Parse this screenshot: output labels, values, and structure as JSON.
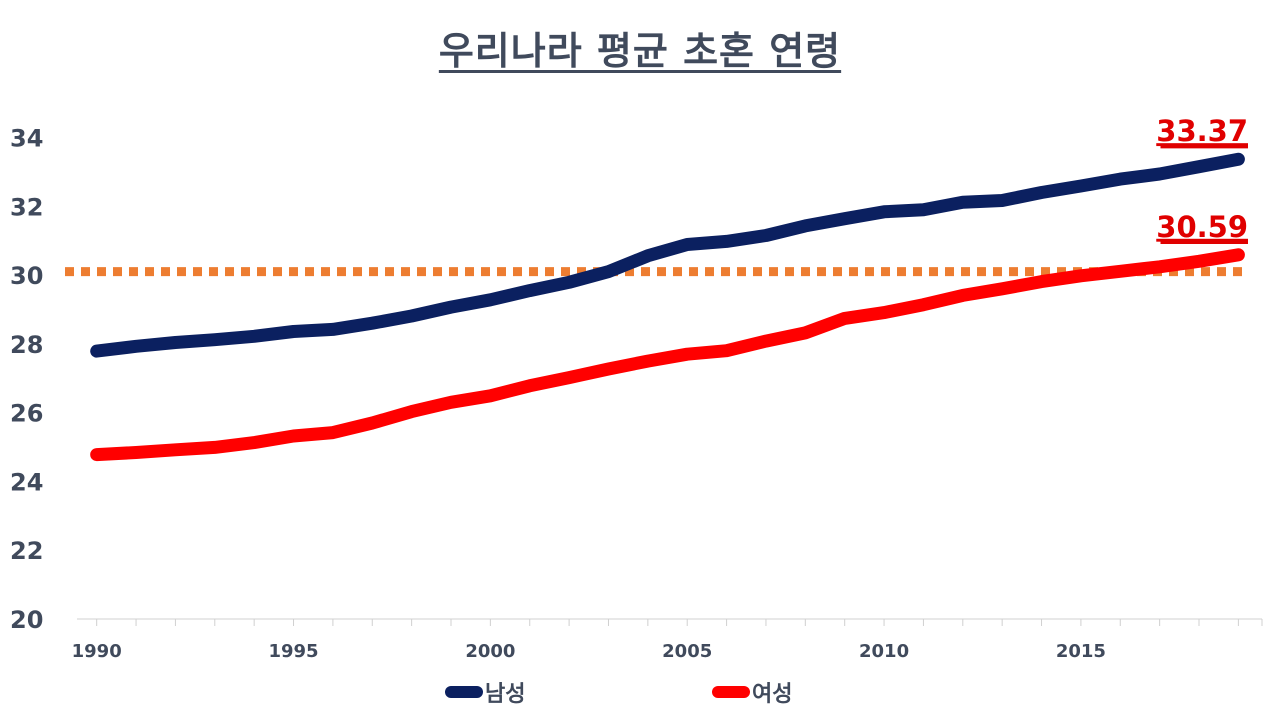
{
  "chart_data": {
    "type": "line",
    "title": "우리나라 평균 초혼 연령",
    "x": [
      1990,
      1991,
      1992,
      1993,
      1994,
      1995,
      1996,
      1997,
      1998,
      1999,
      2000,
      2001,
      2002,
      2003,
      2004,
      2005,
      2006,
      2007,
      2008,
      2009,
      2010,
      2011,
      2012,
      2013,
      2014,
      2015,
      2016,
      2017,
      2018,
      2019
    ],
    "x_tick_labels": [
      "1990",
      "1995",
      "2000",
      "2005",
      "2010",
      "2015"
    ],
    "x_tick_values": [
      1990,
      1995,
      2000,
      2005,
      2010,
      2015
    ],
    "y_tick_labels": [
      "20",
      "22",
      "24",
      "26",
      "28",
      "30",
      "32",
      "34"
    ],
    "y_tick_values": [
      20,
      22,
      24,
      26,
      28,
      30,
      32,
      34
    ],
    "ylim": [
      20,
      34.8
    ],
    "xlim": [
      1989.5,
      2019.6
    ],
    "series": [
      {
        "name": "남성",
        "color": "#0b2060",
        "values": [
          27.79,
          27.93,
          28.04,
          28.12,
          28.22,
          28.36,
          28.42,
          28.6,
          28.81,
          29.07,
          29.28,
          29.55,
          29.79,
          30.1,
          30.56,
          30.89,
          30.98,
          31.15,
          31.43,
          31.64,
          31.84,
          31.9,
          32.12,
          32.17,
          32.4,
          32.59,
          32.79,
          32.94,
          33.15,
          33.37
        ]
      },
      {
        "name": "여성",
        "color": "#ff0000",
        "values": [
          24.78,
          24.84,
          24.92,
          24.99,
          25.13,
          25.32,
          25.42,
          25.7,
          26.03,
          26.3,
          26.49,
          26.78,
          27.02,
          27.27,
          27.5,
          27.7,
          27.8,
          28.08,
          28.32,
          28.74,
          28.91,
          29.14,
          29.41,
          29.6,
          29.81,
          29.98,
          30.11,
          30.24,
          30.4,
          30.59
        ]
      }
    ],
    "reference_line": {
      "value": 30.1,
      "color": "#ed7d31",
      "style": "dotted"
    },
    "annotations": [
      {
        "text": "33.37",
        "x": 2019,
        "y": 33.37,
        "color": "#e00000"
      },
      {
        "text": "30.59",
        "x": 2019,
        "y": 30.59,
        "color": "#e00000"
      }
    ],
    "legend": {
      "placement": "bottom",
      "items": [
        "남성",
        "여성"
      ]
    },
    "grid": false
  }
}
